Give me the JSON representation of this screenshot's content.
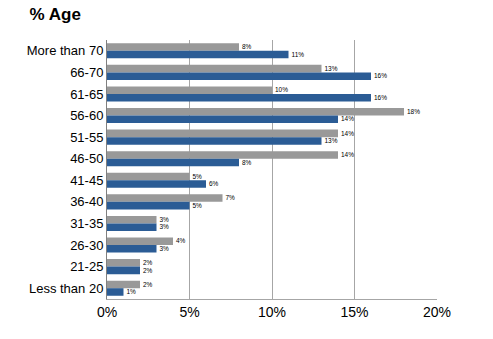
{
  "chart_data": {
    "type": "bar",
    "title": "% Age",
    "orientation": "horizontal",
    "categories": [
      "More than 70",
      "66-70",
      "61-65",
      "56-60",
      "51-55",
      "46-50",
      "41-45",
      "36-40",
      "31-35",
      "26-30",
      "21-25",
      "Less than 20"
    ],
    "series": [
      {
        "color": "#999999",
        "values": [
          8,
          13,
          10,
          18,
          14,
          14,
          5,
          7,
          3,
          4,
          2,
          2
        ],
        "value_labels": [
          "8%",
          "13%",
          "10%",
          "18%",
          "14%",
          "14%",
          "5%",
          "7%",
          "3%",
          "4%",
          "2%",
          "2%"
        ]
      },
      {
        "color": "#2b5c95",
        "values": [
          11,
          16,
          16,
          14,
          13,
          8,
          6,
          5,
          3,
          3,
          2,
          1
        ],
        "value_labels": [
          "11%",
          "16%",
          "16%",
          "14%",
          "13%",
          "8%",
          "6%",
          "5%",
          "3%",
          "3%",
          "2%",
          "1%"
        ]
      }
    ],
    "xlim": [
      0,
      20
    ],
    "xticks": [
      {
        "value": 0,
        "label": "0%"
      },
      {
        "value": 5,
        "label": "5%"
      },
      {
        "value": 10,
        "label": "10%"
      },
      {
        "value": 15,
        "label": "15%"
      },
      {
        "value": 20,
        "label": "20%"
      }
    ],
    "grid": true,
    "data_labels": true
  }
}
